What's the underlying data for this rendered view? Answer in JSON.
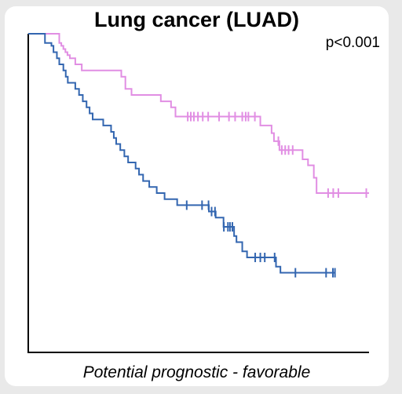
{
  "chart_data": {
    "type": "line",
    "subtype": "kaplan-meier-survival",
    "title": "Lung cancer (LUAD)",
    "annotation": "p<0.001",
    "footer": "Potential prognostic - favorable",
    "xlabel": "",
    "ylabel": "",
    "xlim": [
      0,
      1
    ],
    "ylim": [
      0,
      1
    ],
    "grid": false,
    "axes": "left-bottom",
    "series": [
      {
        "color": "#e18ee3",
        "steps": [
          [
            0.0,
            1.0
          ],
          [
            0.091,
            0.971
          ],
          [
            0.097,
            0.962
          ],
          [
            0.103,
            0.952
          ],
          [
            0.109,
            0.942
          ],
          [
            0.115,
            0.933
          ],
          [
            0.122,
            0.923
          ],
          [
            0.138,
            0.904
          ],
          [
            0.157,
            0.885
          ],
          [
            0.273,
            0.865
          ],
          [
            0.285,
            0.827
          ],
          [
            0.303,
            0.808
          ],
          [
            0.389,
            0.788
          ],
          [
            0.419,
            0.769
          ],
          [
            0.432,
            0.74
          ],
          [
            0.681,
            0.712
          ],
          [
            0.714,
            0.688
          ],
          [
            0.721,
            0.663
          ],
          [
            0.737,
            0.635
          ],
          [
            0.805,
            0.606
          ],
          [
            0.821,
            0.587
          ],
          [
            0.838,
            0.548
          ],
          [
            0.846,
            0.5
          ]
        ],
        "end": 1.0,
        "censors": [
          0.468,
          0.477,
          0.486,
          0.498,
          0.512,
          0.528,
          0.56,
          0.589,
          0.607,
          0.628,
          0.638,
          0.646,
          0.665,
          0.734,
          0.744,
          0.754,
          0.764,
          0.776,
          0.88,
          0.895,
          0.91,
          0.992
        ]
      },
      {
        "color": "#3366b0",
        "steps": [
          [
            0.0,
            1.0
          ],
          [
            0.049,
            0.971
          ],
          [
            0.068,
            0.962
          ],
          [
            0.074,
            0.942
          ],
          [
            0.084,
            0.923
          ],
          [
            0.091,
            0.904
          ],
          [
            0.103,
            0.885
          ],
          [
            0.11,
            0.865
          ],
          [
            0.116,
            0.846
          ],
          [
            0.138,
            0.827
          ],
          [
            0.149,
            0.808
          ],
          [
            0.16,
            0.788
          ],
          [
            0.171,
            0.769
          ],
          [
            0.18,
            0.75
          ],
          [
            0.189,
            0.731
          ],
          [
            0.22,
            0.712
          ],
          [
            0.243,
            0.692
          ],
          [
            0.251,
            0.673
          ],
          [
            0.258,
            0.654
          ],
          [
            0.27,
            0.635
          ],
          [
            0.282,
            0.615
          ],
          [
            0.293,
            0.596
          ],
          [
            0.315,
            0.577
          ],
          [
            0.325,
            0.558
          ],
          [
            0.337,
            0.538
          ],
          [
            0.355,
            0.519
          ],
          [
            0.377,
            0.5
          ],
          [
            0.4,
            0.481
          ],
          [
            0.437,
            0.462
          ],
          [
            0.53,
            0.442
          ],
          [
            0.55,
            0.423
          ],
          [
            0.573,
            0.394
          ],
          [
            0.604,
            0.365
          ],
          [
            0.611,
            0.346
          ],
          [
            0.628,
            0.317
          ],
          [
            0.642,
            0.298
          ],
          [
            0.727,
            0.269
          ],
          [
            0.74,
            0.25
          ]
        ],
        "end": 0.9,
        "censors": [
          0.465,
          0.51,
          0.529,
          0.538,
          0.548,
          0.574,
          0.586,
          0.592,
          0.599,
          0.666,
          0.681,
          0.694,
          0.723,
          0.784,
          0.874,
          0.894,
          0.9
        ]
      }
    ]
  }
}
